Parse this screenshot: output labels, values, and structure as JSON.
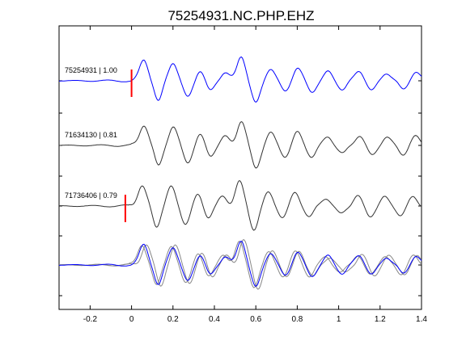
{
  "chart_data": {
    "type": "line",
    "title": "75254931.NC.PHP.EHZ",
    "xlabel": "",
    "ylabel": "",
    "xlim": [
      -0.35,
      1.4
    ],
    "x_ticks": [
      -0.2,
      0,
      0.2,
      0.4,
      0.6,
      0.8,
      1,
      1.2,
      1.4
    ],
    "x_tick_labels": [
      "-0.2",
      "0",
      "0.2",
      "0.4",
      "0.6",
      "0.8",
      "1",
      "1.2",
      "1.4"
    ],
    "grid": false,
    "colors": {
      "primary": "#0000ff",
      "secondary": "#333333",
      "overlay": "#888888",
      "pick": "#ff0000"
    },
    "series": [
      {
        "name": "75254931 | 1.00",
        "row": 0,
        "color": "#0000ff",
        "pick_x": 0.0
      },
      {
        "name": "71634130 | 0.81",
        "row": 1,
        "color": "#333333"
      },
      {
        "name": "71736406 | 0.79",
        "row": 2,
        "color": "#333333",
        "pick_x": -0.03
      }
    ],
    "stack": {
      "name": "",
      "row": 3
    }
  }
}
